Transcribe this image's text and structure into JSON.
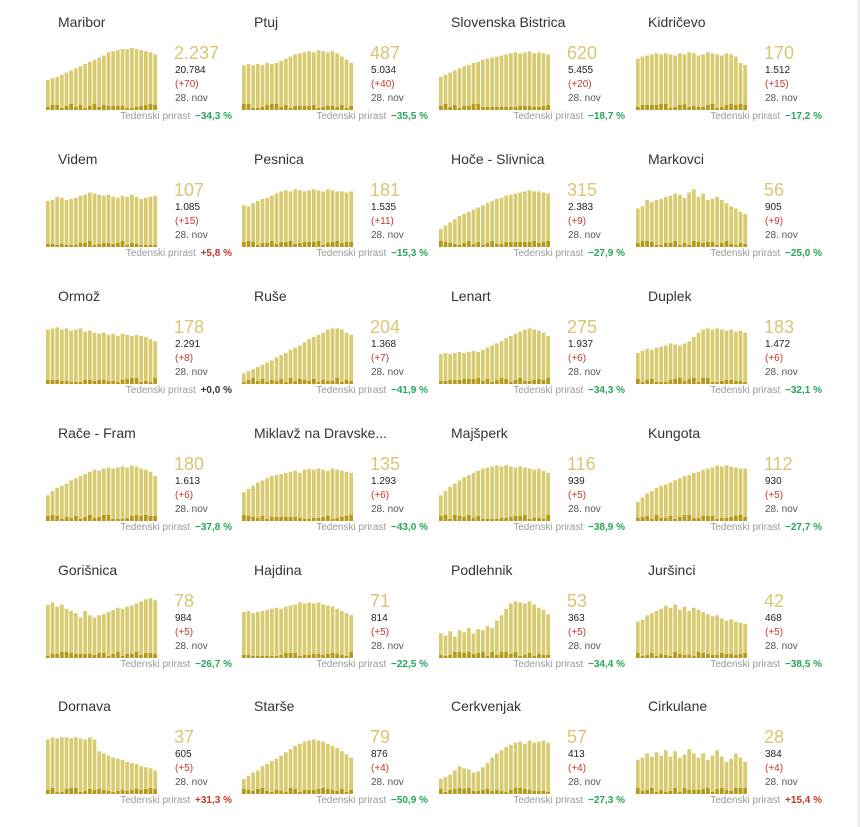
{
  "growth_label": "Tedenski prirast",
  "date_label": "28. nov",
  "colors": {
    "bar": "#d8cb70",
    "bar_dark": "#b39a1a",
    "number": "#d9c674",
    "neg": "#27a55a",
    "pos": "#c0392b"
  },
  "chart_data": [
    {
      "type": "bar",
      "title": "Maribor",
      "active": "2.237",
      "total": "20.784",
      "delta": "(+70)",
      "growth": "−34,3 %",
      "values": [
        28,
        30,
        31,
        33,
        35,
        37,
        39,
        41,
        43,
        45,
        47,
        49,
        51,
        54,
        55,
        56,
        57,
        57,
        58,
        57,
        56,
        55,
        54,
        52
      ]
    },
    {
      "type": "bar",
      "title": "Ptuj",
      "active": "487",
      "total": "5.034",
      "delta": "(+40)",
      "growth": "−35,5 %",
      "values": [
        42,
        43,
        42,
        43,
        42,
        44,
        43,
        44,
        46,
        48,
        50,
        52,
        53,
        54,
        55,
        54,
        56,
        55,
        54,
        55,
        53,
        50,
        47,
        44
      ]
    },
    {
      "type": "bar",
      "title": "Slovenska Bistrica",
      "active": "620",
      "total": "5.455",
      "delta": "(+20)",
      "growth": "−18,7 %",
      "values": [
        31,
        33,
        35,
        37,
        39,
        41,
        42,
        44,
        45,
        47,
        48,
        49,
        50,
        51,
        52,
        53,
        54,
        53,
        54,
        55,
        53,
        54,
        53,
        52
      ]
    },
    {
      "type": "bar",
      "title": "Kidričevo",
      "active": "170",
      "total": "1.512",
      "delta": "(+15)",
      "growth": "−17,2 %",
      "values": [
        48,
        50,
        51,
        52,
        53,
        52,
        53,
        52,
        51,
        53,
        52,
        54,
        53,
        51,
        52,
        54,
        53,
        52,
        51,
        53,
        52,
        50,
        44,
        42
      ]
    },
    {
      "type": "bar",
      "title": "Videm",
      "active": "107",
      "total": "1.085",
      "delta": "(+15)",
      "growth": "+5,8 %",
      "values": [
        43,
        44,
        47,
        46,
        44,
        45,
        46,
        48,
        49,
        51,
        50,
        49,
        48,
        49,
        47,
        46,
        48,
        47,
        49,
        47,
        45,
        46,
        47,
        48
      ]
    },
    {
      "type": "bar",
      "title": "Pesnica",
      "active": "181",
      "total": "1.535",
      "delta": "(+11)",
      "growth": "−15,3 %",
      "values": [
        39,
        38,
        41,
        43,
        45,
        46,
        48,
        50,
        52,
        53,
        52,
        54,
        53,
        52,
        53,
        54,
        53,
        52,
        54,
        53,
        52,
        52,
        51,
        52
      ]
    },
    {
      "type": "bar",
      "title": "Hoče - Slivnica",
      "active": "315",
      "total": "2.383",
      "delta": "(+9)",
      "growth": "−27,9 %",
      "values": [
        17,
        20,
        23,
        26,
        29,
        31,
        33,
        35,
        37,
        39,
        41,
        43,
        45,
        46,
        48,
        49,
        50,
        51,
        52,
        53,
        52,
        52,
        51,
        50
      ]
    },
    {
      "type": "bar",
      "title": "Markovci",
      "active": "56",
      "total": "905",
      "delta": "(+9)",
      "growth": "−25,0 %",
      "values": [
        36,
        38,
        44,
        42,
        44,
        45,
        47,
        48,
        50,
        49,
        46,
        51,
        54,
        47,
        50,
        44,
        45,
        47,
        44,
        41,
        38,
        36,
        33,
        31
      ]
    },
    {
      "type": "bar",
      "title": "Ormož",
      "active": "178",
      "total": "2.291",
      "delta": "(+8)",
      "growth": "+0,0 %",
      "values": [
        51,
        52,
        53,
        51,
        52,
        50,
        51,
        52,
        49,
        50,
        48,
        47,
        48,
        46,
        47,
        45,
        47,
        46,
        45,
        46,
        45,
        44,
        42,
        40
      ]
    },
    {
      "type": "bar",
      "title": "Ruše",
      "active": "204",
      "total": "1.368",
      "delta": "(+7)",
      "growth": "−41,9 %",
      "values": [
        10,
        12,
        14,
        16,
        18,
        20,
        22,
        25,
        27,
        29,
        32,
        34,
        36,
        39,
        42,
        44,
        46,
        48,
        51,
        52,
        52,
        51,
        48,
        46
      ]
    },
    {
      "type": "bar",
      "title": "Lenart",
      "active": "275",
      "total": "1.937",
      "delta": "(+6)",
      "growth": "−34,3 %",
      "values": [
        28,
        29,
        28,
        29,
        30,
        29,
        30,
        31,
        30,
        32,
        34,
        36,
        38,
        40,
        43,
        45,
        47,
        49,
        51,
        52,
        51,
        50,
        48,
        45
      ]
    },
    {
      "type": "bar",
      "title": "Duplek",
      "active": "183",
      "total": "1.472",
      "delta": "(+6)",
      "growth": "−32,1 %",
      "values": [
        29,
        31,
        33,
        32,
        34,
        35,
        36,
        38,
        37,
        36,
        38,
        40,
        44,
        48,
        51,
        52,
        51,
        52,
        51,
        50,
        51,
        49,
        50,
        48
      ]
    },
    {
      "type": "bar",
      "title": "Rače - Fram",
      "active": "180",
      "total": "1.613",
      "delta": "(+6)",
      "growth": "−37,8 %",
      "values": [
        24,
        28,
        31,
        33,
        35,
        38,
        40,
        42,
        44,
        46,
        48,
        47,
        49,
        50,
        49,
        50,
        51,
        50,
        52,
        51,
        49,
        48,
        46,
        42
      ]
    },
    {
      "type": "bar",
      "title": "Miklavž na Dravske...",
      "active": "135",
      "total": "1.293",
      "delta": "(+6)",
      "growth": "−43,0 %",
      "values": [
        27,
        30,
        33,
        36,
        38,
        40,
        42,
        43,
        44,
        45,
        46,
        47,
        45,
        48,
        49,
        48,
        49,
        48,
        47,
        49,
        48,
        47,
        46,
        45
      ]
    },
    {
      "type": "bar",
      "title": "Majšperk",
      "active": "116",
      "total": "939",
      "delta": "(+5)",
      "growth": "−38,9 %",
      "values": [
        24,
        28,
        32,
        35,
        38,
        41,
        43,
        45,
        47,
        49,
        50,
        51,
        52,
        51,
        52,
        51,
        50,
        51,
        50,
        49,
        48,
        49,
        47,
        45
      ]
    },
    {
      "type": "bar",
      "title": "Kungota",
      "active": "112",
      "total": "930",
      "delta": "(+5)",
      "growth": "−27,7 %",
      "values": [
        18,
        22,
        26,
        28,
        31,
        33,
        34,
        36,
        38,
        40,
        42,
        43,
        45,
        46,
        48,
        49,
        50,
        52,
        51,
        52,
        51,
        50,
        49,
        49
      ]
    },
    {
      "type": "bar",
      "title": "Gorišnica",
      "active": "78",
      "total": "984",
      "delta": "(+5)",
      "growth": "−26,7 %",
      "values": [
        50,
        52,
        48,
        50,
        46,
        44,
        42,
        38,
        44,
        40,
        38,
        40,
        41,
        43,
        45,
        47,
        46,
        48,
        49,
        51,
        53,
        55,
        56,
        54
      ]
    },
    {
      "type": "bar",
      "title": "Hajdina",
      "active": "71",
      "total": "814",
      "delta": "(+5)",
      "growth": "−22,5 %",
      "values": [
        43,
        44,
        42,
        43,
        44,
        45,
        46,
        47,
        46,
        48,
        49,
        50,
        52,
        51,
        52,
        51,
        52,
        50,
        49,
        48,
        46,
        44,
        42,
        40
      ]
    },
    {
      "type": "bar",
      "title": "Podlehnik",
      "active": "53",
      "total": "363",
      "delta": "(+5)",
      "growth": "−34,4 %",
      "values": [
        23,
        21,
        25,
        20,
        26,
        24,
        28,
        23,
        27,
        26,
        30,
        28,
        35,
        40,
        46,
        51,
        53,
        52,
        51,
        53,
        50,
        47,
        45,
        41
      ]
    },
    {
      "type": "bar",
      "title": "Juršinci",
      "active": "42",
      "total": "468",
      "delta": "(+5)",
      "growth": "−38,5 %",
      "values": [
        34,
        36,
        40,
        42,
        44,
        46,
        49,
        47,
        50,
        45,
        48,
        44,
        47,
        45,
        43,
        41,
        39,
        40,
        37,
        35,
        36,
        34,
        33,
        32
      ]
    },
    {
      "type": "bar",
      "title": "Dornava",
      "active": "37",
      "total": "605",
      "delta": "(+5)",
      "growth": "+31,3 %",
      "values": [
        51,
        53,
        52,
        53,
        53,
        52,
        53,
        52,
        51,
        53,
        51,
        40,
        38,
        36,
        34,
        33,
        32,
        30,
        29,
        28,
        26,
        25,
        24,
        22
      ]
    },
    {
      "type": "bar",
      "title": "Starše",
      "active": "79",
      "total": "876",
      "delta": "(+4)",
      "growth": "−50,9 %",
      "values": [
        14,
        17,
        20,
        22,
        26,
        28,
        31,
        33,
        36,
        39,
        42,
        45,
        47,
        49,
        50,
        51,
        50,
        49,
        47,
        45,
        43,
        40,
        37,
        34
      ]
    },
    {
      "type": "bar",
      "title": "Cerkvenjak",
      "active": "57",
      "total": "413",
      "delta": "(+4)",
      "growth": "−27,3 %",
      "values": [
        14,
        16,
        18,
        22,
        26,
        24,
        23,
        20,
        21,
        25,
        29,
        34,
        38,
        41,
        44,
        46,
        48,
        49,
        47,
        50,
        48,
        49,
        50,
        48
      ]
    },
    {
      "type": "bar",
      "title": "Cirkulane",
      "active": "28",
      "total": "384",
      "delta": "(+4)",
      "growth": "+15,4 %",
      "values": [
        32,
        34,
        38,
        35,
        39,
        36,
        41,
        35,
        40,
        34,
        37,
        42,
        38,
        34,
        38,
        32,
        36,
        41,
        35,
        30,
        33,
        38,
        34,
        30
      ]
    }
  ]
}
